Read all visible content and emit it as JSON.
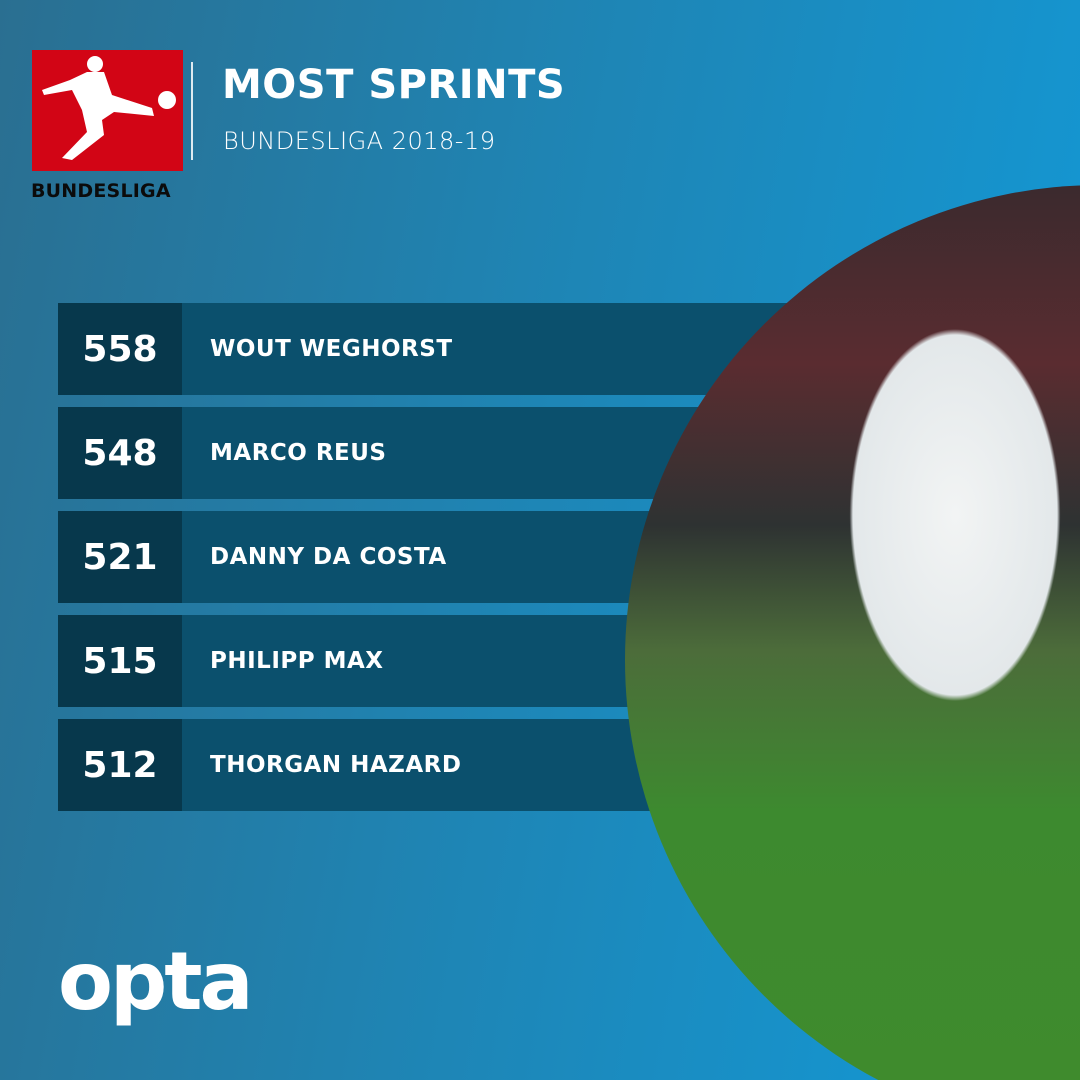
{
  "header": {
    "title": "MOST SPRINTS",
    "subtitle": "BUNDESLIGA 2018-19",
    "logo_text": "BUNDESLIGA"
  },
  "rankings": [
    {
      "value": "558",
      "player": "WOUT WEGHORST"
    },
    {
      "value": "548",
      "player": "MARCO REUS"
    },
    {
      "value": "521",
      "player": "DANNY DA COSTA"
    },
    {
      "value": "515",
      "player": "PHILIPP MAX"
    },
    {
      "value": "512",
      "player": "THORGAN HAZARD"
    }
  ],
  "footer": {
    "brand": "opta"
  },
  "colors": {
    "logo_red": "#d20515",
    "row_bg": "#0b506d",
    "number_bg": "#07384c"
  }
}
